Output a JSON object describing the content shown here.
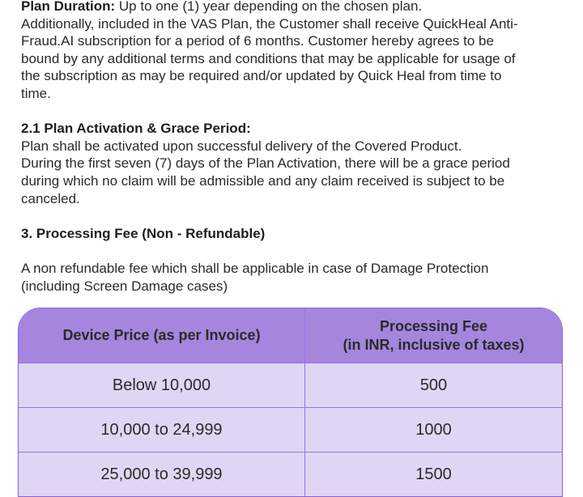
{
  "plan_duration": {
    "label": "Plan Duration:",
    "text": " Up to one (1) year depending on the chosen plan."
  },
  "vas_lines": [
    "Additionally, included in the VAS Plan, the Customer shall receive QuickHeal Anti-",
    "Fraud.AI subscription for a period of 6 months. Customer hereby agrees to be",
    "bound by any additional terms and conditions that may be applicable for usage of",
    "the subscription as may be required and/or updated by Quick Heal from time to",
    "time."
  ],
  "section_2_1": {
    "heading": "2.1 Plan Activation & Grace Period:",
    "lines": [
      "Plan shall be activated upon successful delivery of the Covered Product.",
      "During the first seven (7) days of the Plan Activation, there will be a grace period",
      "during which no claim will be admissible and any claim received is subject to be",
      "canceled."
    ]
  },
  "section_3": {
    "heading": "3. Processing Fee (Non - Refundable)",
    "lines": [
      "A non refundable fee which shall be applicable in case of Damage Protection",
      "(including Screen Damage cases)"
    ]
  },
  "fee_table": {
    "headers": [
      "Device Price (as per Invoice)",
      "Processing Fee",
      "(in INR, inclusive of taxes)"
    ],
    "rows": [
      [
        "Below 10,000",
        "500"
      ],
      [
        "10,000 to 24,999",
        "1000"
      ],
      [
        "25,000 to 39,999",
        "1500"
      ]
    ]
  },
  "colors": {
    "header_bg": "#a586de",
    "row_bg": "#e0d6f4",
    "border": "#8a5ce6"
  }
}
